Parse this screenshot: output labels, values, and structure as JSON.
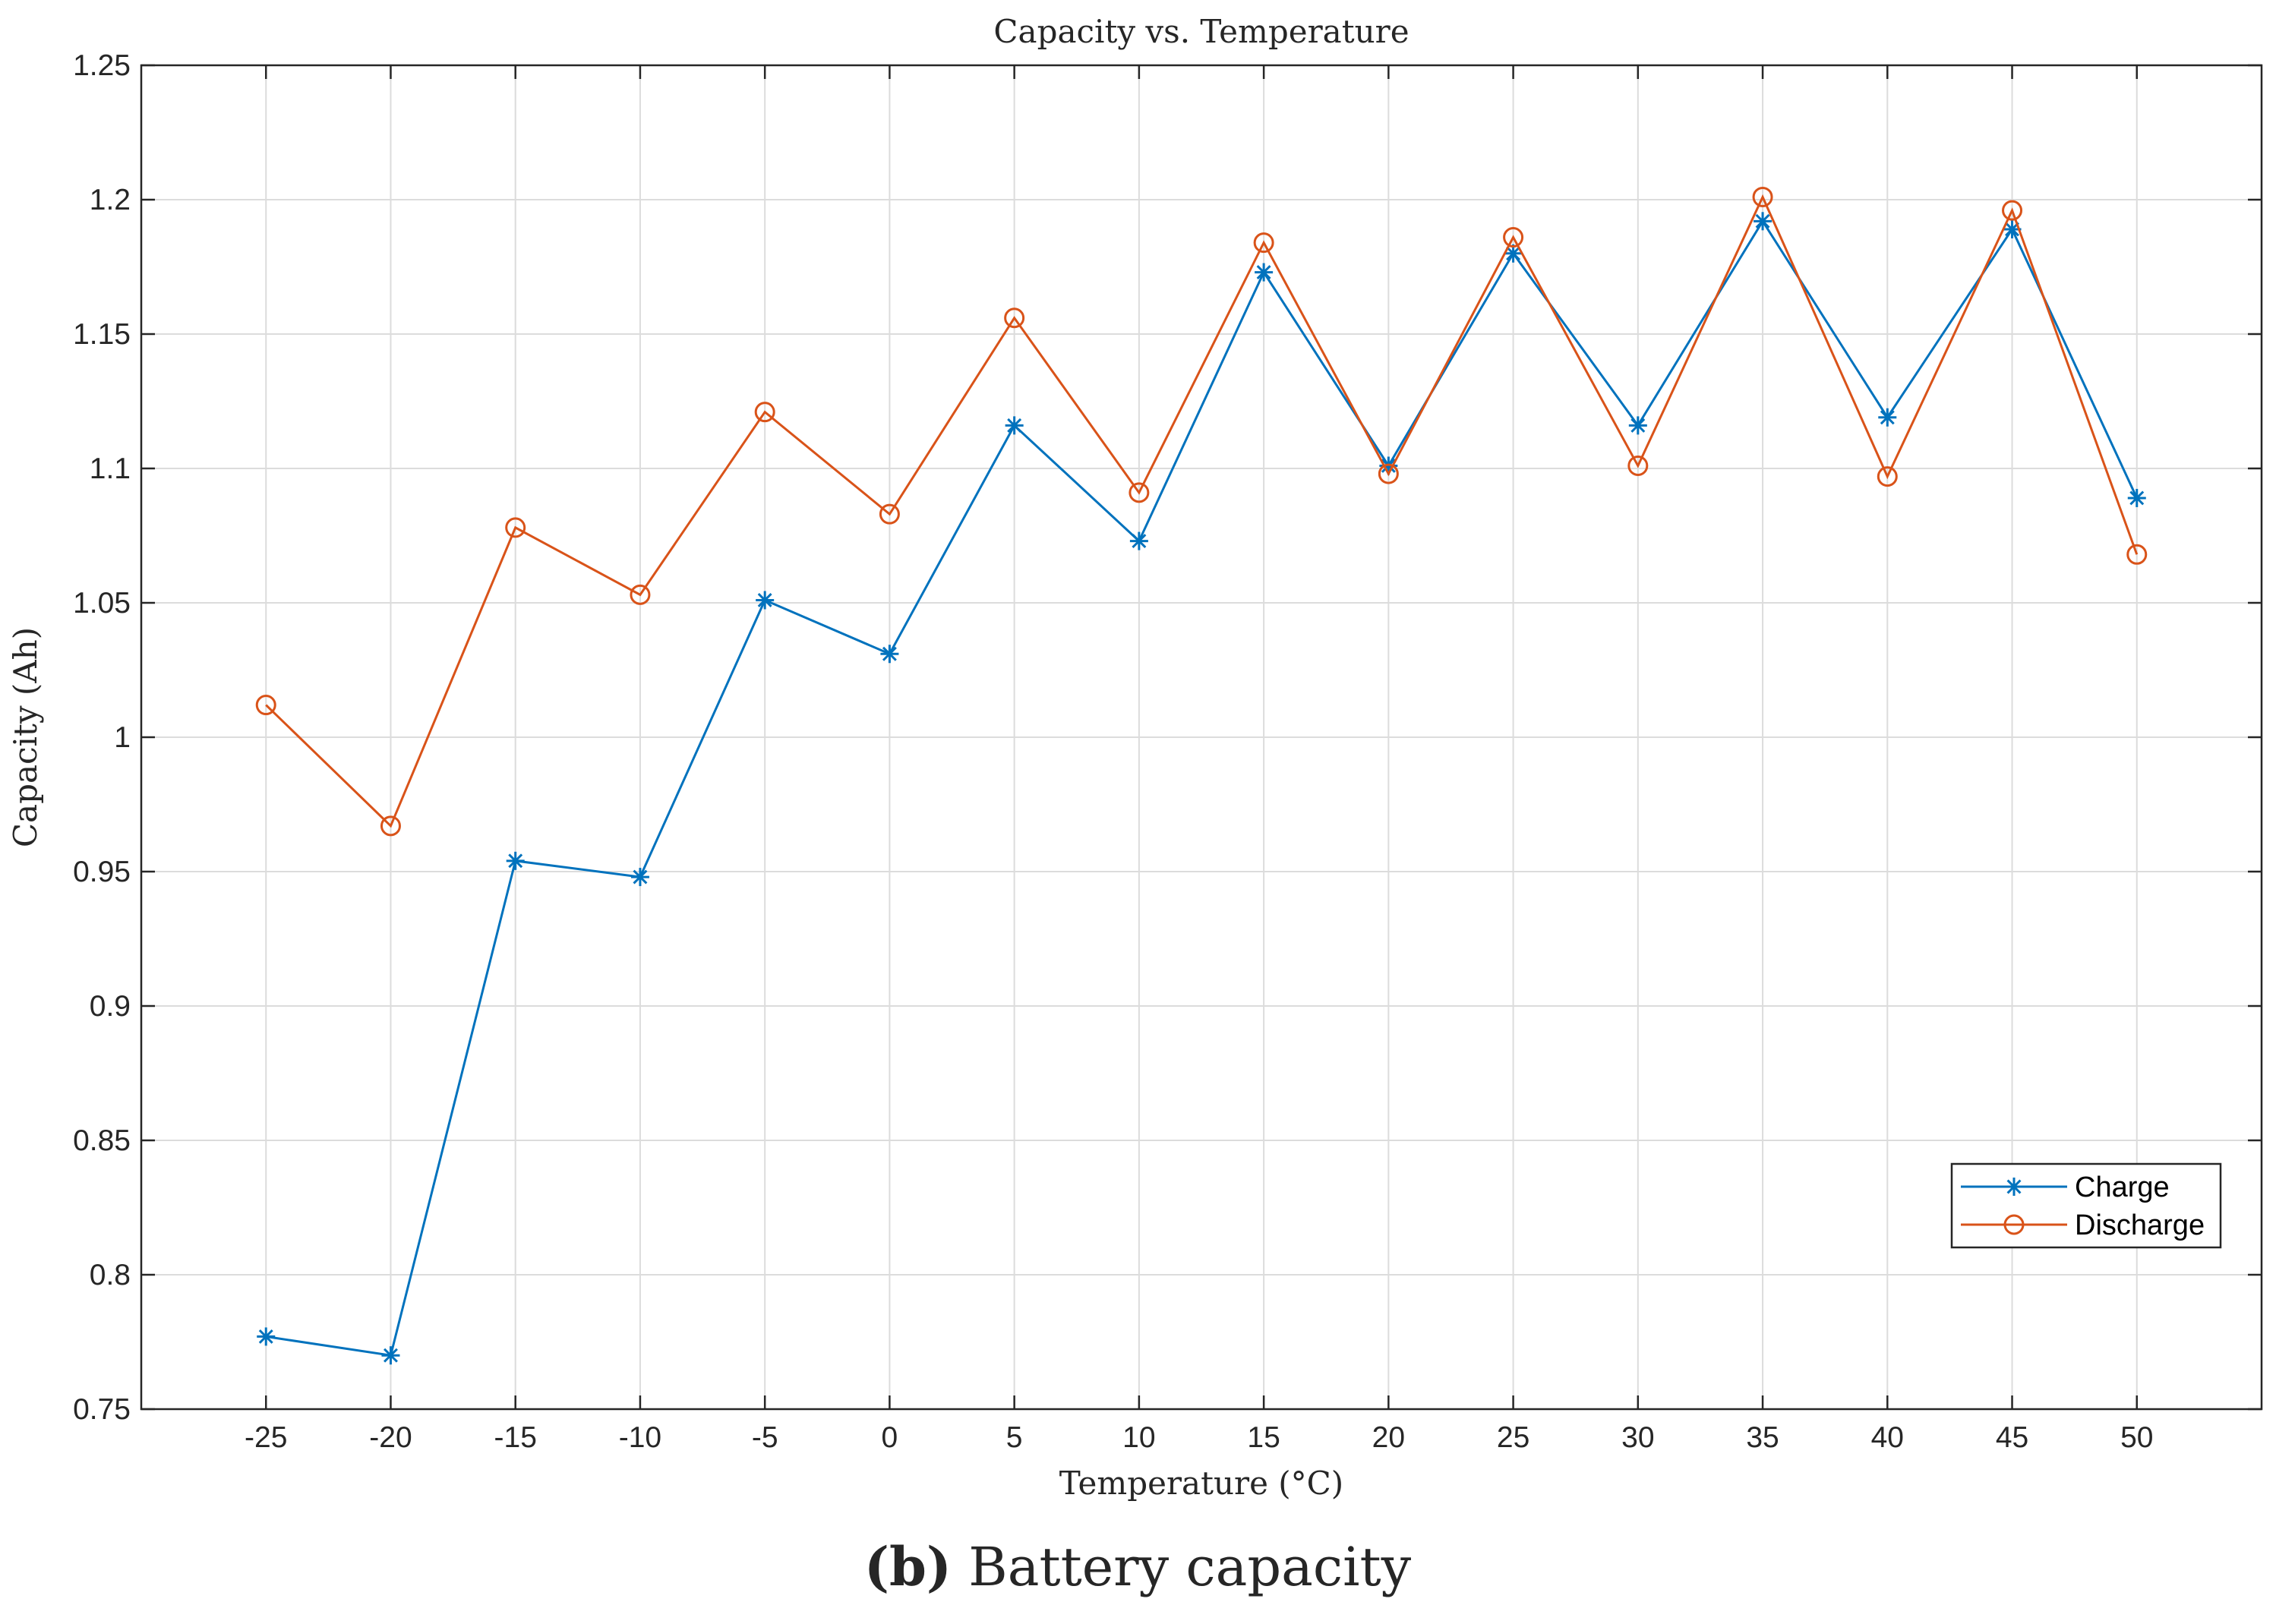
{
  "caption": {
    "label": "(b)",
    "text": " Battery capacity"
  },
  "chart_data": {
    "type": "line",
    "title": "Capacity vs. Temperature",
    "xlabel": "Temperature (°C)",
    "ylabel": "Capacity (Ah)",
    "xlim": [
      -30,
      55
    ],
    "ylim": [
      0.75,
      1.25
    ],
    "grid": true,
    "legend_placement": "bottom-right",
    "x": [
      -25,
      -20,
      -15,
      -10,
      -5,
      0,
      5,
      10,
      15,
      20,
      25,
      30,
      35,
      40,
      45,
      50
    ],
    "xticks": [
      "-25",
      "-20",
      "-15",
      "-10",
      "-5",
      "0",
      "5",
      "10",
      "15",
      "20",
      "25",
      "30",
      "35",
      "40",
      "45",
      "50"
    ],
    "yticks": [
      "0.75",
      "0.8",
      "0.85",
      "0.9",
      "0.95",
      "1",
      "1.05",
      "1.1",
      "1.15",
      "1.2",
      "1.25"
    ],
    "series": [
      {
        "name": "Charge",
        "color": "#0072BD",
        "marker": "asterisk",
        "values": [
          0.777,
          0.77,
          0.954,
          0.948,
          1.051,
          1.031,
          1.116,
          1.073,
          1.173,
          1.101,
          1.18,
          1.116,
          1.192,
          1.119,
          1.189,
          1.089
        ]
      },
      {
        "name": "Discharge",
        "color": "#D95319",
        "marker": "circle",
        "values": [
          1.012,
          0.967,
          1.078,
          1.053,
          1.121,
          1.083,
          1.156,
          1.091,
          1.184,
          1.098,
          1.186,
          1.101,
          1.201,
          1.097,
          1.196,
          1.068
        ]
      }
    ]
  }
}
